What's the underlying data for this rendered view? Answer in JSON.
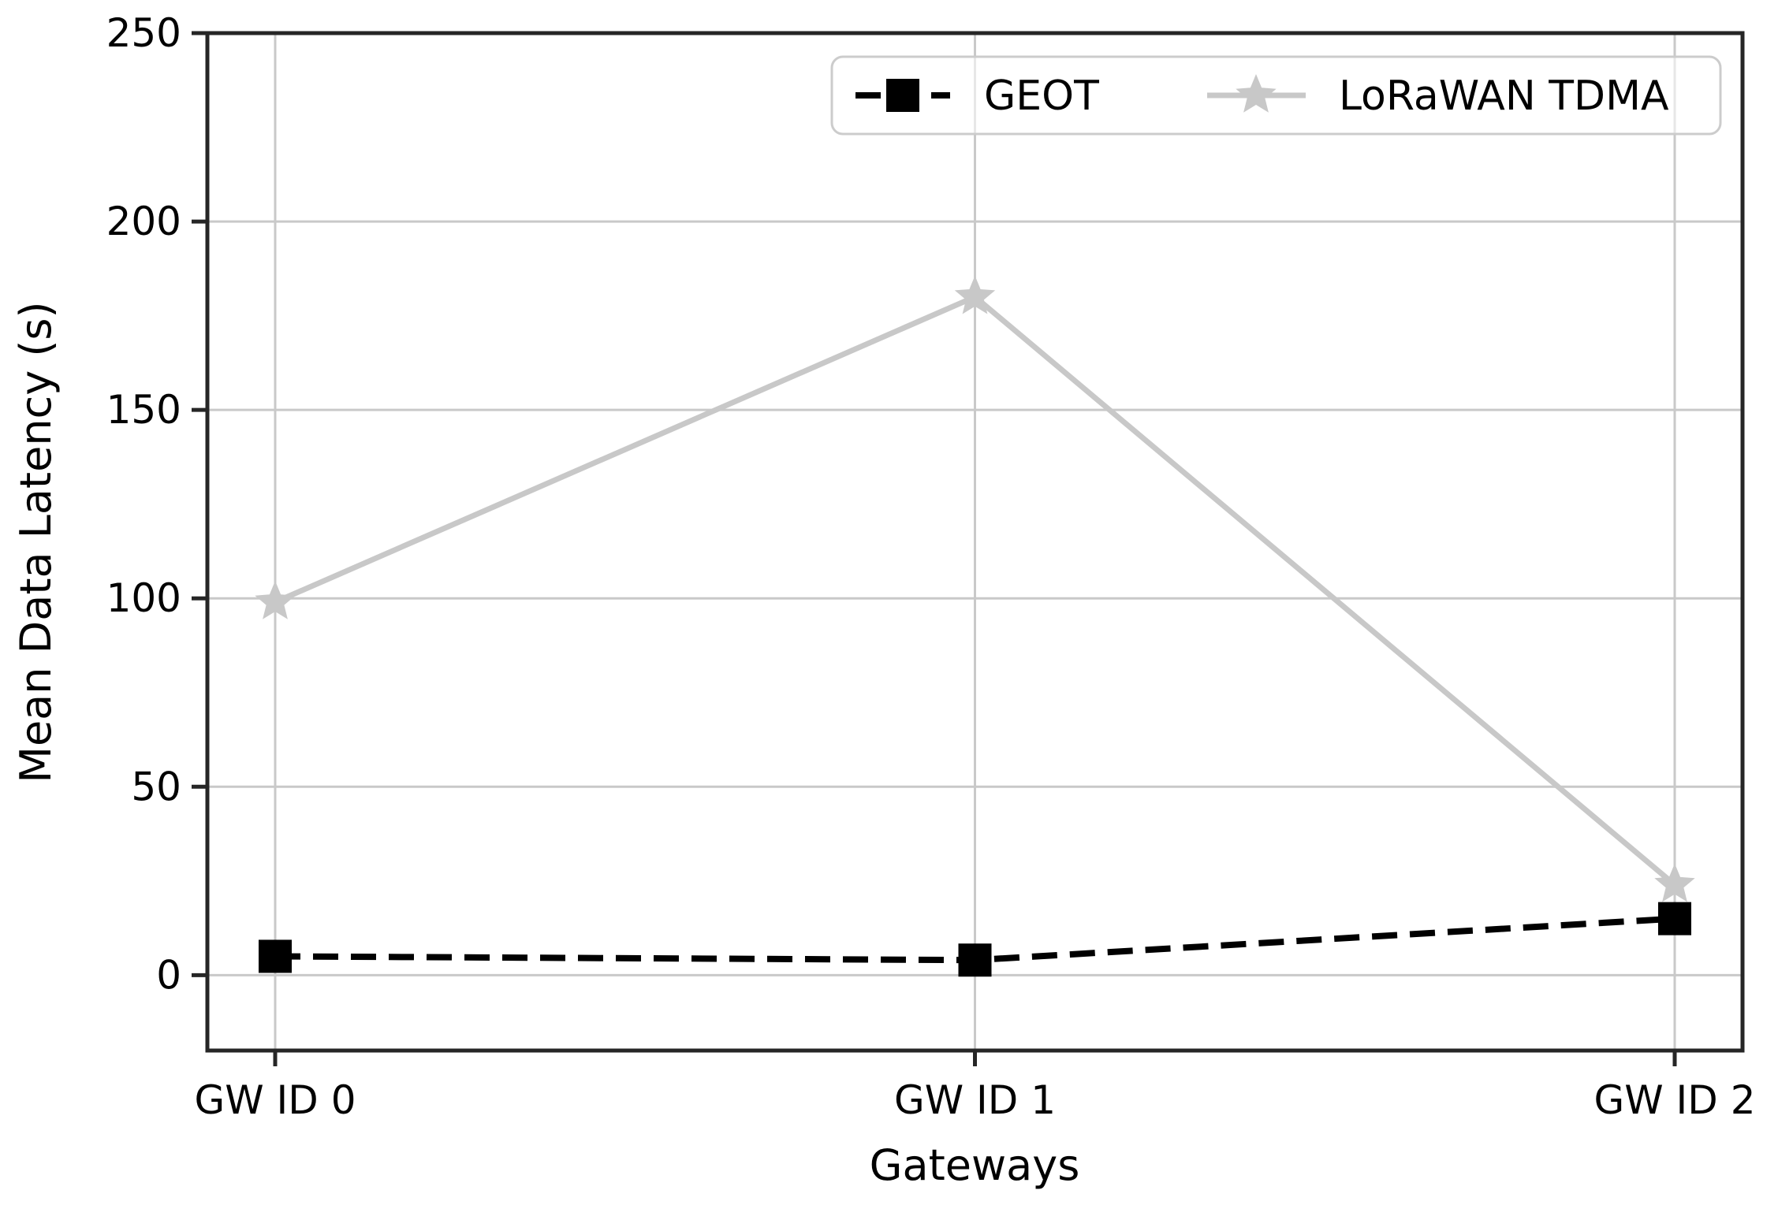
{
  "chart_data": {
    "type": "line",
    "title": "",
    "xlabel": "Gateways",
    "ylabel": "Mean Data Latency (s)",
    "categories": [
      "GW ID 0",
      "GW ID 1",
      "GW ID 2"
    ],
    "series": [
      {
        "name": "GEOT",
        "values": [
          5,
          4,
          15
        ],
        "color": "#000000",
        "line_style": "dashed",
        "marker": "square"
      },
      {
        "name": "LoRaWAN TDMA",
        "values": [
          99,
          180,
          24
        ],
        "color": "#c8c8c8",
        "line_style": "solid",
        "marker": "star"
      }
    ],
    "yticks": [
      0,
      50,
      100,
      150,
      200,
      250
    ],
    "ylim": [
      -20,
      250
    ],
    "grid": true,
    "legend_position": "upper right",
    "colors": {
      "grid": "#c9c9c9",
      "spine": "#262626",
      "tick": "#262626",
      "text": "#000000",
      "legend_border": "#cccccc",
      "legend_fill": "rgba(255,255,255,0.55)"
    }
  }
}
